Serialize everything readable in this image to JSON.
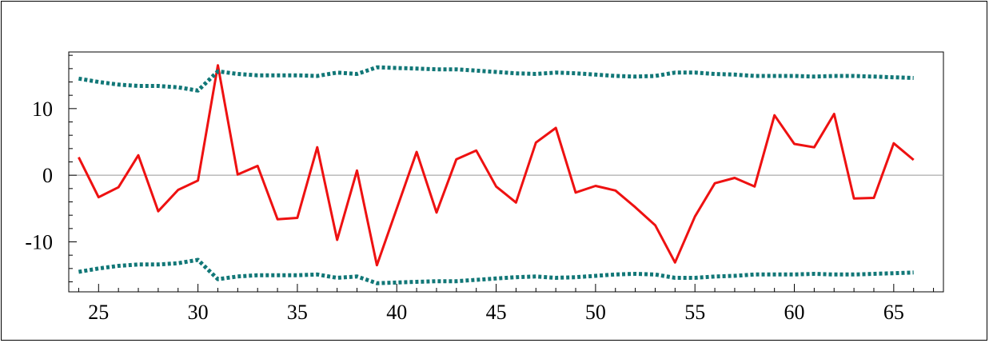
{
  "chart_data": {
    "type": "line",
    "title": "",
    "xlabel": "",
    "ylabel": "",
    "xlim": [
      23.5,
      67.5
    ],
    "ylim": [
      -17.5,
      18.5
    ],
    "x_ticks": [
      25,
      30,
      35,
      40,
      45,
      50,
      55,
      60,
      65
    ],
    "x_tick_labels": [
      "25",
      "30",
      "35",
      "40",
      "45",
      "50",
      "55",
      "60",
      "65"
    ],
    "y_ticks": [
      -10,
      0,
      10
    ],
    "y_tick_labels": [
      "-10",
      "0",
      "10"
    ],
    "grid": false,
    "reference_line": 0,
    "colors": {
      "series": "#ee1111",
      "band": "#117777",
      "zero_line": "#999999"
    },
    "x": [
      24,
      25,
      26,
      27,
      28,
      29,
      30,
      31,
      32,
      33,
      34,
      35,
      36,
      37,
      38,
      39,
      40,
      41,
      42,
      43,
      44,
      45,
      46,
      47,
      48,
      49,
      50,
      51,
      52,
      53,
      54,
      55,
      56,
      57,
      58,
      59,
      60,
      61,
      62,
      63,
      64,
      65,
      66
    ],
    "series": [
      {
        "style": "solid",
        "values": [
          2.7,
          -3.3,
          -1.8,
          3.0,
          -5.4,
          -2.2,
          -0.8,
          16.5,
          0.1,
          1.4,
          -6.6,
          -6.4,
          4.2,
          -9.7,
          0.7,
          -13.5,
          -5.0,
          3.5,
          -5.6,
          2.4,
          3.7,
          -1.7,
          -4.1,
          4.9,
          7.1,
          -2.6,
          -1.6,
          -2.3,
          -4.8,
          -7.5,
          -13.1,
          -6.2,
          -1.2,
          -0.4,
          -1.7,
          9.0,
          4.7,
          4.2,
          9.2,
          -3.5,
          -3.4,
          4.8,
          2.3
        ]
      },
      {
        "style": "dotted",
        "values": [
          14.5,
          14.0,
          13.6,
          13.4,
          13.4,
          13.2,
          12.7,
          15.6,
          15.2,
          15.0,
          15.0,
          15.0,
          14.9,
          15.4,
          15.2,
          16.2,
          16.1,
          16.0,
          15.9,
          15.9,
          15.7,
          15.5,
          15.3,
          15.2,
          15.4,
          15.3,
          15.1,
          14.9,
          14.8,
          14.9,
          15.4,
          15.4,
          15.2,
          15.1,
          14.9,
          14.9,
          14.9,
          14.8,
          14.9,
          14.9,
          14.8,
          14.7,
          14.6
        ]
      },
      {
        "style": "dotted",
        "values": [
          -14.5,
          -14.0,
          -13.6,
          -13.4,
          -13.4,
          -13.2,
          -12.7,
          -15.6,
          -15.2,
          -15.0,
          -15.0,
          -15.0,
          -14.9,
          -15.4,
          -15.2,
          -16.2,
          -16.1,
          -16.0,
          -15.9,
          -15.9,
          -15.7,
          -15.5,
          -15.3,
          -15.2,
          -15.4,
          -15.3,
          -15.1,
          -14.9,
          -14.8,
          -14.9,
          -15.4,
          -15.4,
          -15.2,
          -15.1,
          -14.9,
          -14.9,
          -14.9,
          -14.8,
          -14.9,
          -14.9,
          -14.8,
          -14.7,
          -14.6
        ]
      }
    ]
  }
}
